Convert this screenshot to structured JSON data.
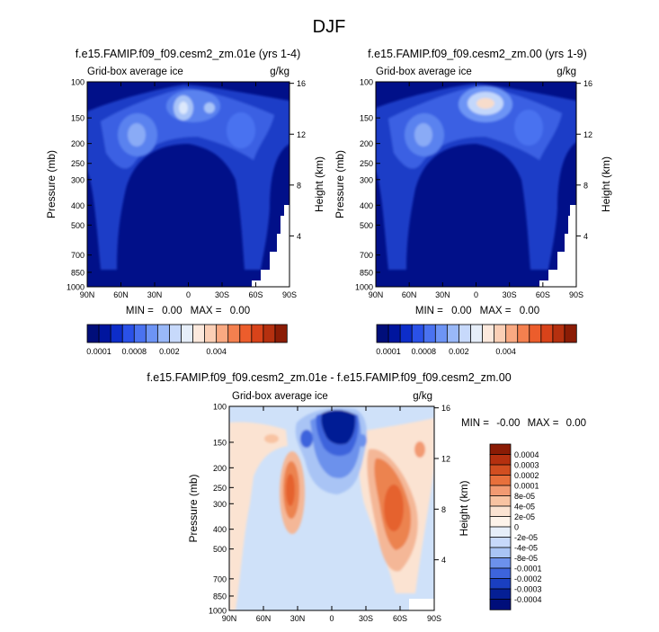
{
  "page_title": "DJF",
  "colors": {
    "blue_scale": [
      "#000e7a",
      "#00159e",
      "#0d2dc9",
      "#2a51e8",
      "#4a72f0",
      "#6d94f5",
      "#99b8f8",
      "#c7d9fb",
      "#e6eef9"
    ],
    "warm_scale": [
      "#fce9dd",
      "#fbcfb6",
      "#f9a982",
      "#f4804f",
      "#ec5d2c",
      "#d8431a",
      "#b5300f",
      "#8b1c05"
    ],
    "bg_blue": "#011089",
    "diff_neutral": "#cfe1f9",
    "diff_pos": [
      "#fbe3d2",
      "#f8c3a2",
      "#f29a72",
      "#e8703c",
      "#d24e20"
    ],
    "diff_neg": [
      "#a9c4f5",
      "#6c91ec",
      "#3d64dc",
      "#1a3fc0",
      "#051f95"
    ]
  },
  "chart_data": [
    {
      "id": "top-left",
      "type": "heatmap",
      "title": "f.e15.FAMIP.f09_f09.cesm2_zm.01e (yrs 1-4)",
      "variable_label": "Grid-box average ice",
      "units_label": "g/kg",
      "ylabel": "Pressure (mb)",
      "ylabel_right": "Height (km)",
      "x_ticks": [
        "90N",
        "60N",
        "30N",
        "0",
        "30S",
        "60S",
        "90S"
      ],
      "y_ticks": [
        "100",
        "150",
        "200",
        "250",
        "300",
        "400",
        "500",
        "700",
        "850",
        "1000"
      ],
      "height_ticks": [
        "16",
        "12",
        "8",
        "4"
      ],
      "stats": {
        "min_label": "MIN =",
        "min_value": "0.00",
        "max_label": "MAX =",
        "max_value": "0.00"
      },
      "colorbar_labels": [
        "0.0001",
        "0.0008",
        "0.002",
        "0.004"
      ]
    },
    {
      "id": "top-right",
      "type": "heatmap",
      "title": "f.e15.FAMIP.f09_f09.cesm2_zm.00 (yrs 1-9)",
      "variable_label": "Grid-box average ice",
      "units_label": "g/kg",
      "ylabel": "Pressure (mb)",
      "ylabel_right": "Height (km)",
      "x_ticks": [
        "90N",
        "60N",
        "30N",
        "0",
        "30S",
        "60S",
        "90S"
      ],
      "y_ticks": [
        "100",
        "150",
        "200",
        "250",
        "300",
        "400",
        "500",
        "700",
        "850",
        "1000"
      ],
      "height_ticks": [
        "16",
        "12",
        "8",
        "4"
      ],
      "stats": {
        "min_label": "MIN =",
        "min_value": "0.00",
        "max_label": "MAX =",
        "max_value": "0.00"
      },
      "colorbar_labels": [
        "0.0001",
        "0.0008",
        "0.002",
        "0.004"
      ]
    },
    {
      "id": "bottom-diff",
      "type": "heatmap",
      "title": "f.e15.FAMIP.f09_f09.cesm2_zm.01e - f.e15.FAMIP.f09_f09.cesm2_zm.00",
      "variable_label": "Grid-box average ice",
      "units_label": "g/kg",
      "ylabel": "Pressure (mb)",
      "ylabel_right": "Height (km)",
      "x_ticks": [
        "90N",
        "60N",
        "30N",
        "0",
        "30S",
        "60S",
        "90S"
      ],
      "y_ticks": [
        "100",
        "150",
        "200",
        "250",
        "300",
        "400",
        "500",
        "700",
        "850",
        "1000"
      ],
      "height_ticks": [
        "16",
        "12",
        "8",
        "4"
      ],
      "stats": {
        "min_label": "MIN =",
        "min_value": "-0.00",
        "max_label": "MAX =",
        "max_value": "0.00"
      },
      "colorbar_labels": [
        "0.0004",
        "0.0003",
        "0.0002",
        "0.0001",
        "8e-05",
        "4e-05",
        "2e-05",
        "0",
        "-2e-05",
        "-4e-05",
        "-8e-05",
        "-0.0001",
        "-0.0002",
        "-0.0003",
        "-0.0004"
      ]
    }
  ]
}
